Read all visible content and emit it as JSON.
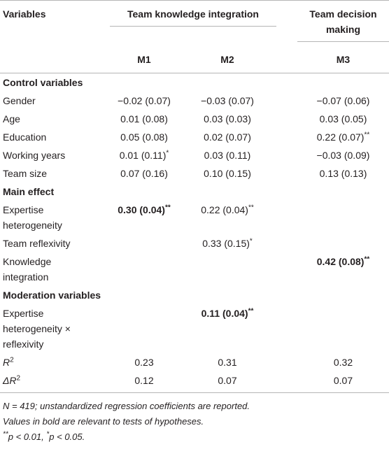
{
  "table": {
    "header": {
      "variables": "Variables",
      "group1": "Team knowledge integration",
      "group2": "Team decision making",
      "models": [
        "M1",
        "M2",
        "M3"
      ]
    },
    "rows": [
      {
        "section": "Control variables"
      },
      {
        "label": "Gender",
        "cells": [
          {
            "text": "−0.02 (0.07)"
          },
          {
            "text": "−0.03 (0.07)"
          },
          {
            "text": "−0.07 (0.06)"
          }
        ]
      },
      {
        "label": "Age",
        "cells": [
          {
            "text": "0.01 (0.08)"
          },
          {
            "text": "0.03 (0.03)"
          },
          {
            "text": "0.03 (0.05)"
          }
        ]
      },
      {
        "label": "Education",
        "cells": [
          {
            "text": "0.05 (0.08)"
          },
          {
            "text": "0.02 (0.07)"
          },
          {
            "text": "0.22 (0.07)",
            "sup": "**"
          }
        ]
      },
      {
        "label": "Working years",
        "cells": [
          {
            "text": "0.01 (0.11)",
            "sup": "*"
          },
          {
            "text": "0.03 (0.11)"
          },
          {
            "text": "−0.03 (0.09)"
          }
        ]
      },
      {
        "label": "Team size",
        "cells": [
          {
            "text": "0.07 (0.16)"
          },
          {
            "text": "0.10 (0.15)"
          },
          {
            "text": "0.13 (0.13)"
          }
        ]
      },
      {
        "section": "Main effect"
      },
      {
        "label": "Expertise heterogeneity",
        "cells": [
          {
            "text": "0.30 (0.04)",
            "sup": "**",
            "bold": true
          },
          {
            "text": "0.22 (0.04)",
            "sup": "**"
          },
          null
        ]
      },
      {
        "label": "Team reflexivity",
        "cells": [
          null,
          {
            "text": "0.33 (0.15)",
            "sup": "*"
          },
          null
        ]
      },
      {
        "label": "Knowledge integration",
        "cells": [
          null,
          null,
          {
            "text": "0.42 (0.08)",
            "sup": "**",
            "bold": true
          }
        ]
      },
      {
        "section": "Moderation variables"
      },
      {
        "label": "Expertise heterogeneity × reflexivity",
        "cells": [
          null,
          {
            "text": "0.11 (0.04)",
            "sup": "**",
            "bold": true
          },
          null
        ]
      },
      {
        "label": {
          "text": "R",
          "sup": "2"
        },
        "cells": [
          {
            "text": "0.23"
          },
          {
            "text": "0.31"
          },
          {
            "text": "0.32"
          }
        ]
      },
      {
        "label": {
          "text": "ΔR",
          "sup": "2"
        },
        "cells": [
          {
            "text": "0.12"
          },
          {
            "text": "0.07"
          },
          {
            "text": "0.07"
          }
        ]
      }
    ],
    "notes": [
      "N = 419; unstandardized regression coefficients are reported.",
      "Values in bold are relevant to tests of hypotheses.",
      [
        {
          "text": "**",
          "sup": true
        },
        {
          "text": "p < 0.01, "
        },
        {
          "text": "*",
          "sup": true
        },
        {
          "text": "p < 0.05."
        }
      ]
    ]
  }
}
